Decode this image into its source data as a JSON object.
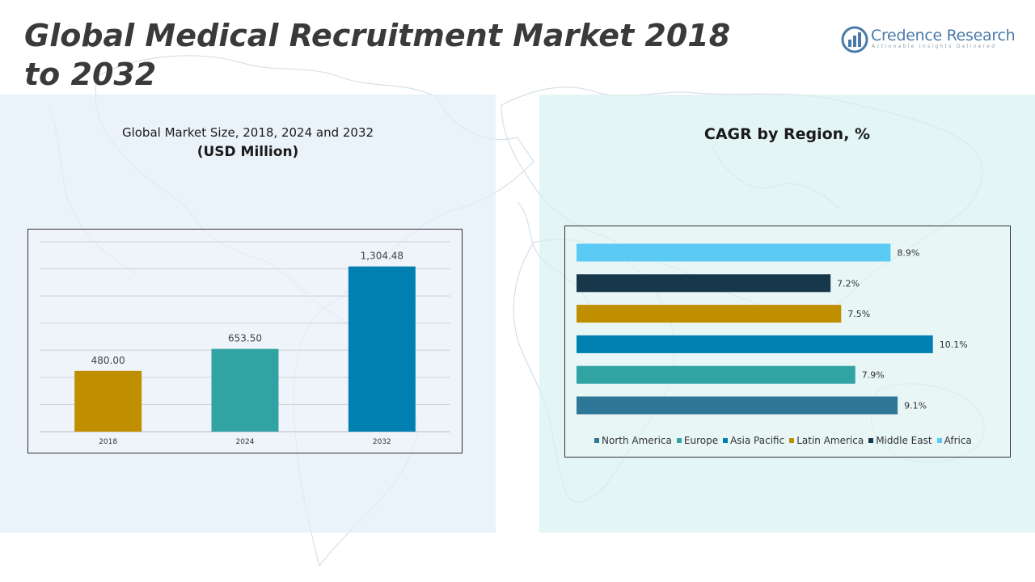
{
  "page": {
    "title": "Global Medical Recruitment Market 2018 to 2032"
  },
  "logo": {
    "name": "Credence Research",
    "tagline": "Actionable Insights Delivered"
  },
  "left_panel": {
    "title": "Global Market Size, 2018, 2024 and 2032",
    "subtitle": "(USD Million)"
  },
  "right_panel": {
    "title": "CAGR by Region, %"
  },
  "colors": {
    "mustard": "#BF8F00",
    "teal": "#31A3A3",
    "blue": "#0080B0",
    "dark_navy": "#17384B",
    "sky": "#5BCBF5",
    "steel_blue": "#2F7796",
    "logo_blue": "#4A7AA8"
  },
  "chart_data": [
    {
      "type": "bar",
      "title": "Global Market Size, 2018, 2024 and 2032",
      "subtitle": "(USD Million)",
      "categories": [
        "2018",
        "2024",
        "2032"
      ],
      "values": [
        480.0,
        653.5,
        1304.48
      ],
      "value_labels": [
        "480.00",
        "653.50",
        "1,304.48"
      ],
      "bar_colors": [
        "#BF8F00",
        "#31A3A3",
        "#0080B0"
      ],
      "ylim": [
        0,
        1500
      ],
      "grid": true,
      "xlabel": "",
      "ylabel": ""
    },
    {
      "type": "bar",
      "orientation": "horizontal",
      "title": "CAGR by Region, %",
      "series": [
        {
          "name": "North America",
          "value": 9.1,
          "label": "9.1%",
          "color": "#2F7796"
        },
        {
          "name": "Europe",
          "value": 7.9,
          "label": "7.9%",
          "color": "#31A3A3"
        },
        {
          "name": "Asia Pacific",
          "value": 10.1,
          "label": "10.1%",
          "color": "#0080B0"
        },
        {
          "name": "Latin America",
          "value": 7.5,
          "label": "7.5%",
          "color": "#BF8F00"
        },
        {
          "name": "Middle East",
          "value": 7.2,
          "label": "7.2%",
          "color": "#17384B"
        },
        {
          "name": "Africa",
          "value": 8.9,
          "label": "8.9%",
          "color": "#5BCBF5"
        }
      ],
      "xlim": [
        0,
        11
      ],
      "legend": "bottom",
      "grid": false
    }
  ]
}
